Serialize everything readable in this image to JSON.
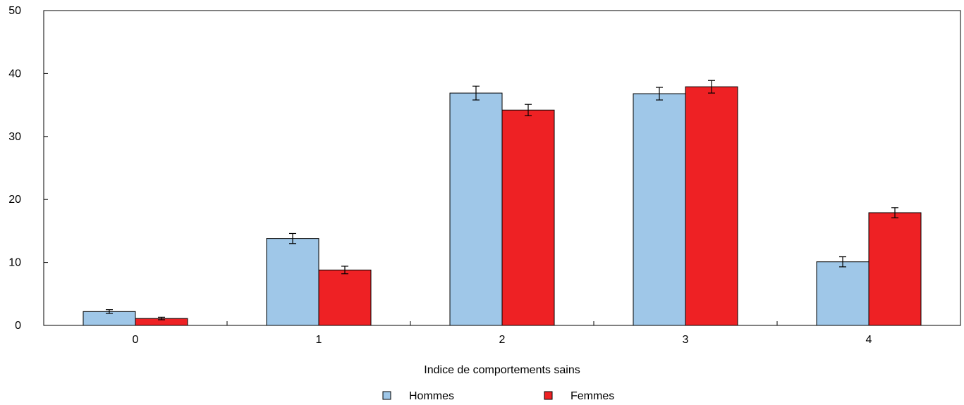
{
  "chart_data": {
    "type": "bar",
    "title": "",
    "xlabel": "Indice de comportements sains",
    "ylabel": "",
    "categories": [
      "0",
      "1",
      "2",
      "3",
      "4"
    ],
    "ylim": [
      0,
      50
    ],
    "yticks": [
      "0",
      "10",
      "20",
      "30",
      "40",
      "50"
    ],
    "grid": false,
    "legend_position": "bottom-center",
    "error_bars": true,
    "series": [
      {
        "name": "Hommes",
        "color": "#9fc7e8",
        "values": [
          2.2,
          13.8,
          36.9,
          36.8,
          10.1
        ],
        "errors": [
          0.3,
          0.8,
          1.1,
          1.0,
          0.8
        ]
      },
      {
        "name": "Femmes",
        "color": "#ee2124",
        "values": [
          1.1,
          8.8,
          34.2,
          37.9,
          17.9
        ],
        "errors": [
          0.2,
          0.6,
          0.9,
          1.0,
          0.8
        ]
      }
    ]
  }
}
